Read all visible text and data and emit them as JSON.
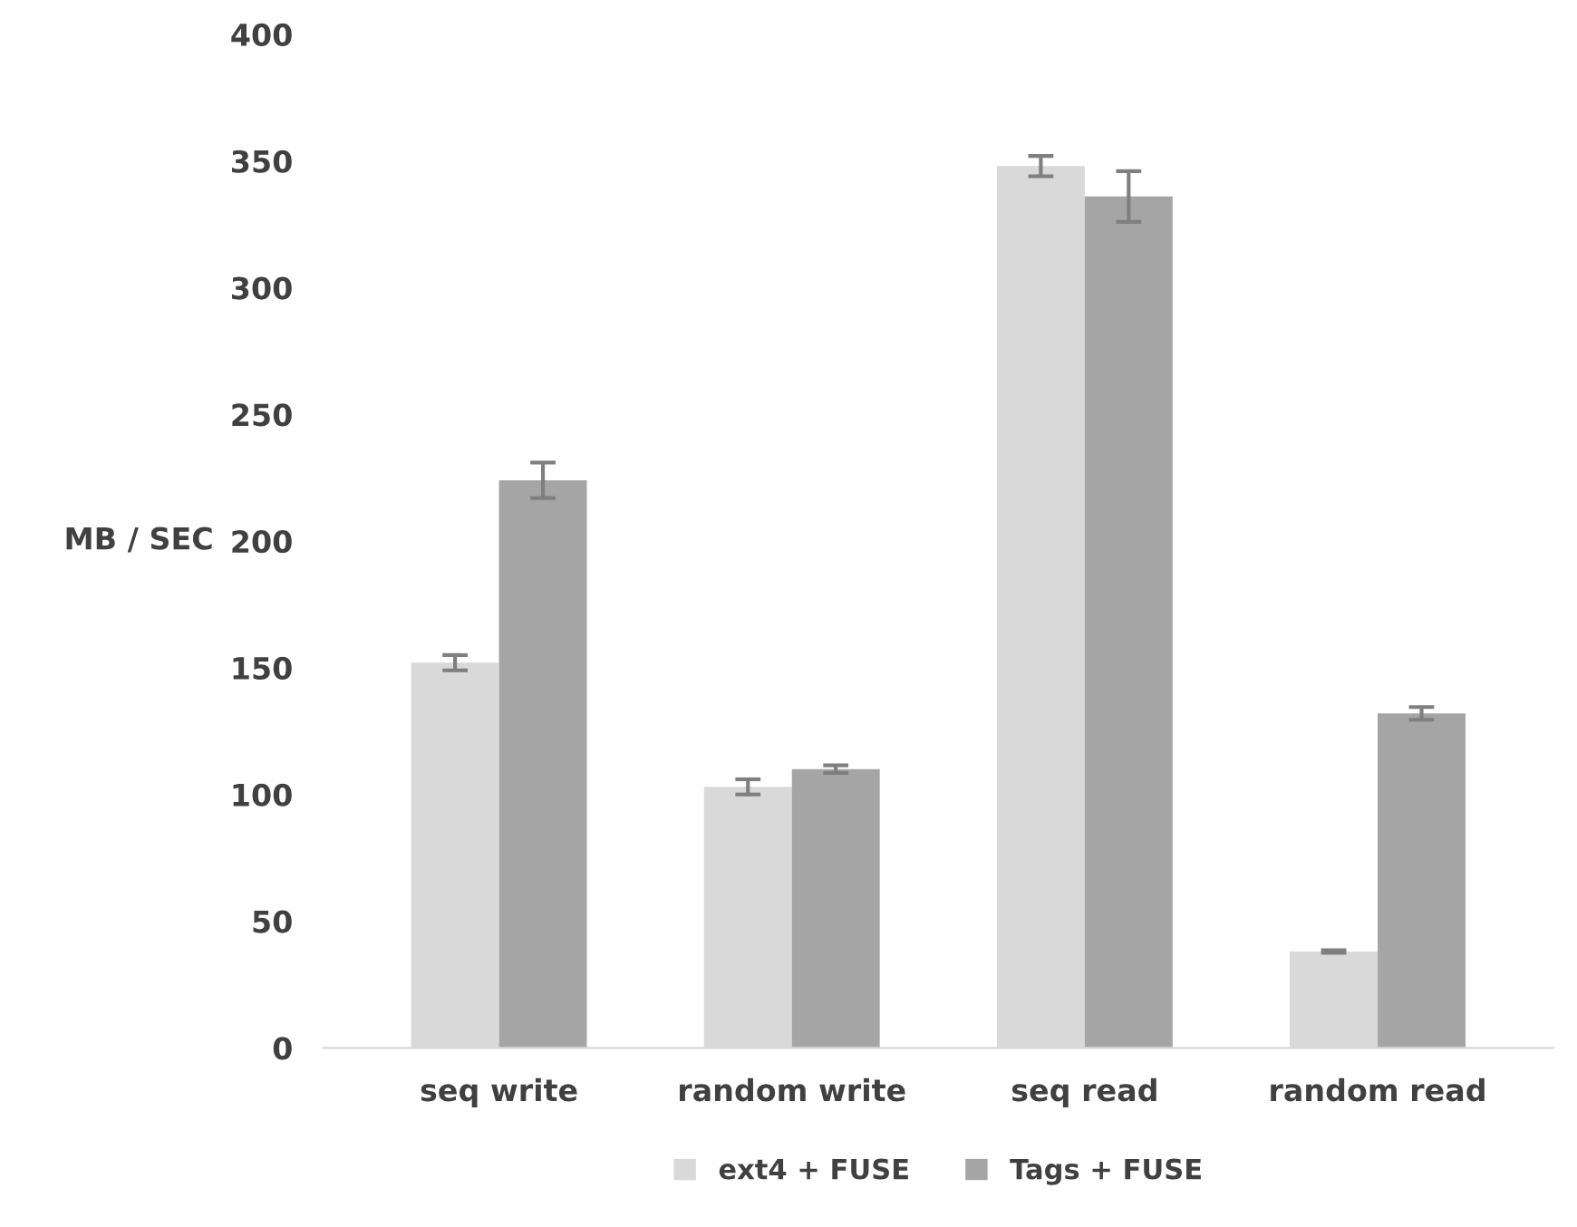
{
  "chart_data": {
    "type": "bar",
    "ylabel": "MB / SEC",
    "categories": [
      "seq write",
      "random write",
      "seq read",
      "random read"
    ],
    "series": [
      {
        "name": "ext4 + FUSE",
        "color": "#d9d9d9",
        "values": [
          152,
          103,
          348,
          38
        ],
        "errors": [
          3,
          3,
          4,
          0.5
        ]
      },
      {
        "name": "Tags + FUSE",
        "color": "#a5a5a5",
        "values": [
          224,
          110,
          336,
          132
        ],
        "errors": [
          7,
          1.5,
          10,
          2.5
        ]
      }
    ],
    "ylim": [
      0,
      400
    ],
    "yticks": [
      0,
      50,
      100,
      150,
      200,
      250,
      300,
      350,
      400
    ],
    "grid": false,
    "legend": "bottom"
  }
}
